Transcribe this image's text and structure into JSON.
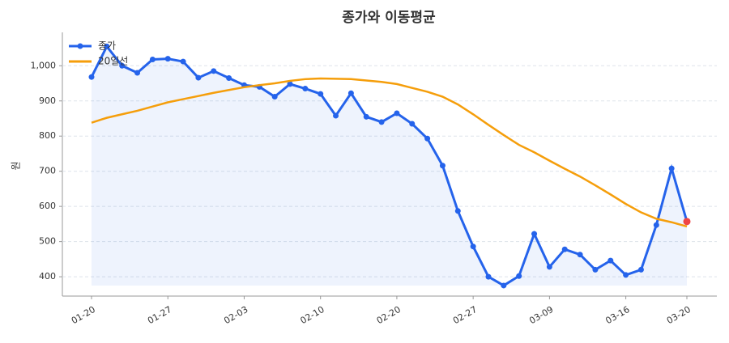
{
  "chart_data": {
    "type": "line",
    "title": "종가와 이동평균",
    "y_label": "원",
    "categories": [
      "01-20",
      null,
      null,
      null,
      null,
      "01-27",
      null,
      null,
      null,
      null,
      "02-03",
      null,
      null,
      null,
      null,
      "02-10",
      null,
      null,
      null,
      null,
      "02-20",
      null,
      null,
      null,
      null,
      "02-27",
      null,
      null,
      null,
      null,
      "03-09",
      null,
      null,
      null,
      null,
      "03-16",
      null,
      null,
      null,
      "03-20"
    ],
    "series": [
      {
        "name": "종가",
        "color": "#2563eb",
        "marker": true,
        "fill": true,
        "values": [
          968,
          1055,
          1000,
          980,
          1018,
          1020,
          1012,
          966,
          985,
          965,
          945,
          940,
          912,
          948,
          935,
          920,
          858,
          922,
          855,
          840,
          865,
          835,
          793,
          716,
          587,
          486,
          400,
          375,
          402,
          522,
          428,
          478,
          463,
          420,
          446,
          405,
          420,
          547,
          708,
          557
        ]
      },
      {
        "name": "20일선",
        "color": "#f59e0b",
        "marker": false,
        "fill": false,
        "values": [
          838,
          852,
          862,
          872,
          884,
          896,
          905,
          914,
          923,
          931,
          939,
          945,
          950,
          957,
          962,
          964,
          963,
          962,
          958,
          954,
          948,
          937,
          926,
          912,
          890,
          862,
          832,
          803,
          775,
          754,
          730,
          707,
          685,
          660,
          634,
          607,
          583,
          565,
          555,
          543
        ]
      }
    ],
    "last_point_color": "#ef4444",
    "ylim": [
      345,
      1095
    ],
    "yticks": [
      400,
      500,
      600,
      700,
      800,
      900,
      {
        "value": 1000,
        "label": "1,000"
      }
    ],
    "grid": true,
    "legend": "upper-left"
  }
}
